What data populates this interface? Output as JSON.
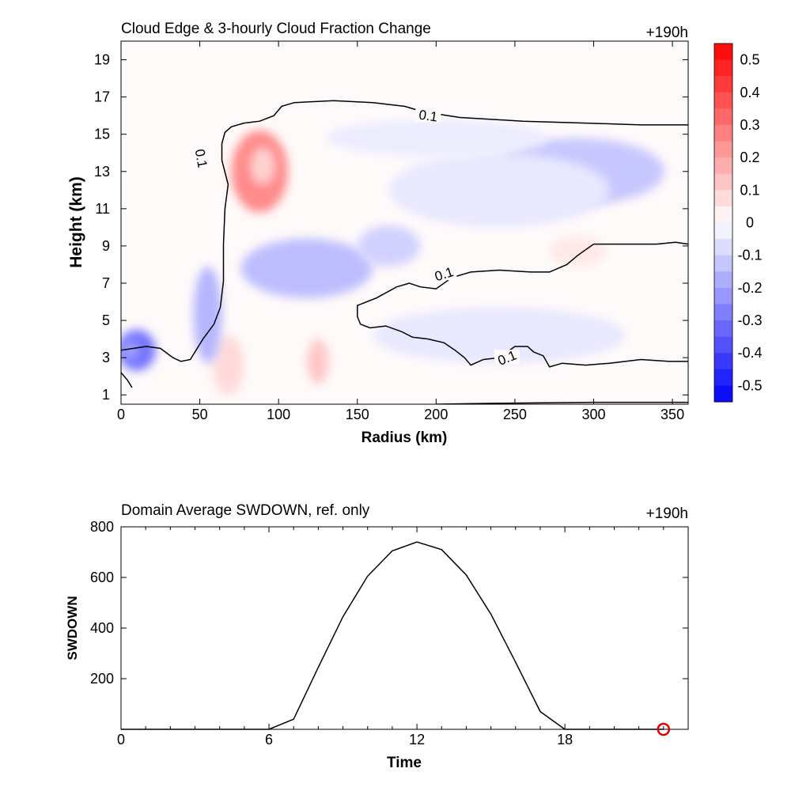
{
  "chart_data": [
    {
      "type": "heatmap",
      "title": "Cloud Edge & 3-hourly Cloud Fraction Change",
      "time_label": "+190h",
      "xlabel": "Radius (km)",
      "ylabel": "Height (km)",
      "xlim": [
        0,
        360
      ],
      "ylim": [
        0.5,
        20
      ],
      "x_ticks": [
        "0",
        "50",
        "100",
        "150",
        "200",
        "250",
        "300",
        "350"
      ],
      "y_ticks": [
        "1",
        "3",
        "5",
        "7",
        "9",
        "11",
        "13",
        "15",
        "17",
        "19"
      ],
      "colorbar": {
        "range": [
          -0.55,
          0.55
        ],
        "labels": [
          "0.5",
          "0.4",
          "0.3",
          "0.2",
          "0.1",
          "0",
          "-0.1",
          "-0.2",
          "-0.3",
          "-0.4",
          "-0.5"
        ]
      },
      "contour_level": "0.1",
      "contour_label_text": "0.1",
      "contour_labels": [
        [
          195,
          16.0
        ],
        [
          51,
          13.7
        ],
        [
          205,
          7.5
        ],
        [
          245,
          3.0
        ]
      ],
      "blobs": [
        {
          "x": 88,
          "y": 13.0,
          "rx": 18,
          "ry": 2.2,
          "value": 0.25
        },
        {
          "x": 90,
          "y": 13.3,
          "rx": 8,
          "ry": 1.0,
          "value": 0.1
        },
        {
          "x": 125,
          "y": 2.8,
          "rx": 7,
          "ry": 1.2,
          "value": 0.12
        },
        {
          "x": 68,
          "y": 2.6,
          "rx": 10,
          "ry": 1.6,
          "value": 0.08
        },
        {
          "x": 290,
          "y": 8.7,
          "rx": 18,
          "ry": 0.8,
          "value": 0.05
        },
        {
          "x": 10,
          "y": 3.4,
          "rx": 12,
          "ry": 1.1,
          "value": -0.3
        },
        {
          "x": 6,
          "y": 3.4,
          "rx": 5,
          "ry": 0.5,
          "value": -0.2
        },
        {
          "x": 55,
          "y": 5.3,
          "rx": 9,
          "ry": 2.6,
          "value": -0.16
        },
        {
          "x": 118,
          "y": 7.8,
          "rx": 42,
          "ry": 1.6,
          "value": -0.14
        },
        {
          "x": 170,
          "y": 9.0,
          "rx": 20,
          "ry": 1.1,
          "value": -0.1
        },
        {
          "x": 290,
          "y": 13.0,
          "rx": 55,
          "ry": 1.8,
          "value": -0.12
        },
        {
          "x": 240,
          "y": 12.0,
          "rx": 70,
          "ry": 2.0,
          "value": -0.05
        },
        {
          "x": 240,
          "y": 4.2,
          "rx": 80,
          "ry": 1.5,
          "value": -0.05
        },
        {
          "x": 200,
          "y": 14.8,
          "rx": 70,
          "ry": 1.0,
          "value": -0.04
        }
      ],
      "contours": [
        [
          [
            0,
            2.2
          ],
          [
            4,
            1.8
          ],
          [
            7,
            1.4
          ]
        ],
        [
          [
            0,
            3.4
          ],
          [
            16,
            3.6
          ],
          [
            25,
            3.5
          ],
          [
            33,
            3.0
          ],
          [
            38,
            2.8
          ],
          [
            44,
            2.9
          ],
          [
            52,
            4.0
          ],
          [
            59,
            4.8
          ],
          [
            63,
            5.7
          ],
          [
            65,
            7.1
          ],
          [
            65,
            9.1
          ],
          [
            66,
            11.0
          ],
          [
            68,
            12.3
          ],
          [
            64,
            13.6
          ],
          [
            64,
            14.5
          ],
          [
            66,
            15.1
          ],
          [
            70,
            15.4
          ],
          [
            78,
            15.6
          ],
          [
            88,
            15.7
          ],
          [
            97,
            16.0
          ],
          [
            102,
            16.5
          ],
          [
            110,
            16.7
          ],
          [
            135,
            16.8
          ],
          [
            160,
            16.7
          ],
          [
            180,
            16.5
          ],
          [
            192,
            16.2
          ],
          [
            215,
            15.9
          ],
          [
            255,
            15.7
          ],
          [
            295,
            15.6
          ],
          [
            330,
            15.5
          ],
          [
            360,
            15.5
          ]
        ],
        [
          [
            360,
            2.8
          ],
          [
            348,
            2.8
          ],
          [
            330,
            2.9
          ],
          [
            310,
            2.7
          ],
          [
            295,
            2.6
          ],
          [
            280,
            2.7
          ],
          [
            272,
            2.5
          ],
          [
            268,
            3.1
          ],
          [
            262,
            3.3
          ],
          [
            258,
            3.6
          ],
          [
            250,
            3.6
          ],
          [
            240,
            3.0
          ],
          [
            230,
            2.9
          ],
          [
            222,
            2.6
          ],
          [
            218,
            3.0
          ],
          [
            212,
            3.4
          ],
          [
            205,
            3.8
          ],
          [
            195,
            4.0
          ],
          [
            185,
            4.1
          ],
          [
            178,
            4.4
          ],
          [
            168,
            4.7
          ],
          [
            158,
            4.6
          ],
          [
            152,
            4.8
          ],
          [
            150,
            5.2
          ],
          [
            150,
            5.8
          ],
          [
            156,
            6.0
          ],
          [
            162,
            6.2
          ],
          [
            175,
            6.8
          ],
          [
            183,
            7.0
          ],
          [
            190,
            6.8
          ],
          [
            200,
            6.7
          ],
          [
            210,
            7.3
          ],
          [
            222,
            7.6
          ],
          [
            240,
            7.7
          ],
          [
            260,
            7.6
          ],
          [
            272,
            7.6
          ],
          [
            283,
            8.0
          ],
          [
            290,
            8.5
          ],
          [
            295,
            8.8
          ],
          [
            300,
            9.1
          ],
          [
            320,
            9.1
          ],
          [
            340,
            9.1
          ],
          [
            352,
            9.2
          ],
          [
            360,
            9.1
          ]
        ],
        [
          [
            200,
            0.5
          ],
          [
            240,
            0.55
          ],
          [
            300,
            0.6
          ],
          [
            360,
            0.6
          ]
        ]
      ]
    },
    {
      "type": "line",
      "title": "Domain Average SWDOWN, ref. only",
      "time_label": "+190h",
      "xlabel": "Time",
      "ylabel": "SWDOWN",
      "xlim": [
        0,
        23
      ],
      "ylim": [
        0,
        800
      ],
      "x_ticks": [
        "0",
        "6",
        "12",
        "18"
      ],
      "y_ticks": [
        "200",
        "400",
        "600",
        "800"
      ],
      "series": [
        {
          "x": [
            0,
            1,
            2,
            3,
            4,
            5,
            6,
            7,
            8,
            9,
            10,
            11,
            12,
            13,
            14,
            15,
            16,
            17,
            18,
            19,
            20,
            21,
            22
          ],
          "values": [
            0,
            0,
            0,
            0,
            0,
            0,
            0,
            40,
            245,
            445,
            605,
            705,
            740,
            710,
            610,
            455,
            265,
            70,
            0,
            0,
            0,
            0,
            0
          ]
        }
      ],
      "marker": {
        "x": 22,
        "y": 0,
        "color": "#dd0000"
      }
    }
  ]
}
